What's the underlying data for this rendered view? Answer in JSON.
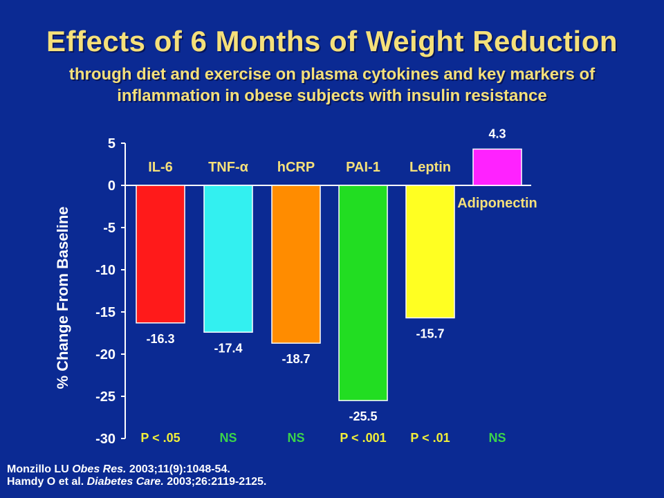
{
  "title": "Effects of 6 Months of Weight Reduction",
  "subtitle_line1": "through diet and exercise on plasma cytokines and key markers of",
  "subtitle_line2": "inflammation in obese subjects with insulin resistance",
  "references": [
    {
      "authors": "Monzillo LU ",
      "journal": "Obes Res.",
      "details": " 2003;11(9):1048-54."
    },
    {
      "authors": "Hamdy O et al.  ",
      "journal": "Diabetes Care.",
      "details": "  2003;26:2119-2125."
    }
  ],
  "colors": {
    "background": "#0b2a93",
    "title": "#f5e07a",
    "p_significant": "#f0ee3a",
    "p_ns": "#3bd34b"
  },
  "chart_data": {
    "type": "bar",
    "ylabel": "% Change From Baseline",
    "ylim": [
      -30,
      5
    ],
    "yticks": [
      5,
      0,
      -5,
      -10,
      -15,
      -20,
      -25,
      -30
    ],
    "grid": false,
    "categories": [
      "IL-6",
      "TNF-α",
      "hCRP",
      "PAI-1",
      "Leptin",
      "Adiponectin"
    ],
    "values": [
      -16.3,
      -17.4,
      -18.7,
      -25.5,
      -15.7,
      4.3
    ],
    "value_labels": [
      "-16.3",
      "-17.4",
      "-18.7",
      "-25.5",
      "-15.7",
      "4.3"
    ],
    "bar_colors": [
      "#ff1a1a",
      "#33f0f0",
      "#ff8c00",
      "#22dd22",
      "#ffff22",
      "#ff22ff"
    ],
    "p_values": [
      "P < .05",
      "NS",
      "NS",
      "P < .001",
      "P < .01",
      "NS"
    ],
    "p_significant": [
      true,
      false,
      false,
      true,
      true,
      false
    ]
  }
}
